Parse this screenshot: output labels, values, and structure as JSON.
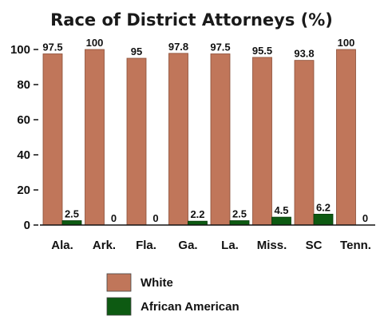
{
  "chart_data": {
    "type": "bar",
    "title": "Race of District Attorneys (%)",
    "categories": [
      "Ala.",
      "Ark.",
      "Fla.",
      "Ga.",
      "La.",
      "Miss.",
      "SC",
      "Tenn."
    ],
    "series": [
      {
        "name": "White",
        "values": [
          97.5,
          100,
          95,
          97.8,
          97.5,
          95.5,
          93.8,
          100
        ],
        "color": "#c0765a"
      },
      {
        "name": "African American",
        "values": [
          2.5,
          0,
          0,
          2.2,
          2.5,
          4.5,
          6.2,
          0
        ],
        "color": "#0d5a12"
      }
    ],
    "value_labels": [
      [
        "97.5",
        "100",
        "95",
        "97.8",
        "97.5",
        "95.5",
        "93.8",
        "100"
      ],
      [
        "2.5",
        "0",
        "0",
        "2.2",
        "2.5",
        "4.5",
        "6.2",
        "0"
      ]
    ],
    "yticks": [
      "0",
      "20",
      "40",
      "60",
      "80",
      "100"
    ],
    "ylim": [
      0,
      100
    ],
    "grid": false,
    "legend_position": "bottom-center"
  }
}
